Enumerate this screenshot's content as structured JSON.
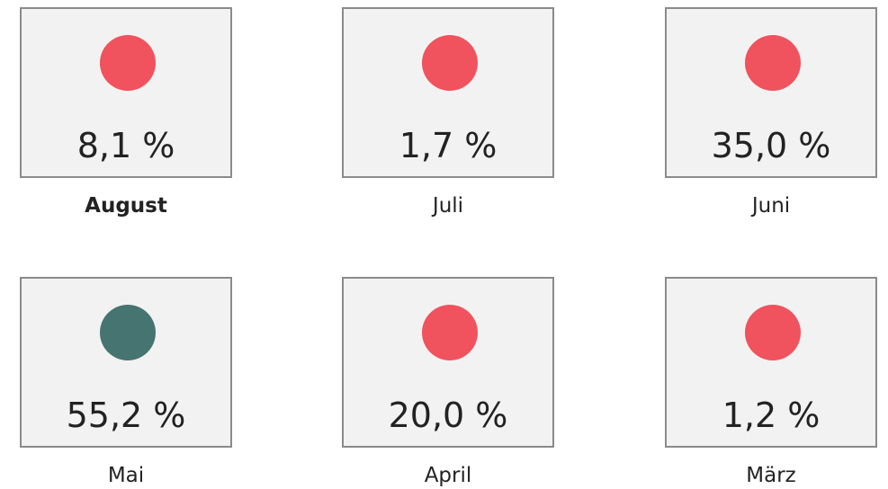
{
  "tiles": [
    {
      "value": "8,1 %",
      "label": "August",
      "color": "#f0525e",
      "selected": true
    },
    {
      "value": "1,7 %",
      "label": "Juli",
      "color": "#f0525e",
      "selected": false
    },
    {
      "value": "35,0 %",
      "label": "Juni",
      "color": "#f0525e",
      "selected": false
    },
    {
      "value": "55,2 %",
      "label": "Mai",
      "color": "#467470",
      "selected": false
    },
    {
      "value": "20,0 %",
      "label": "April",
      "color": "#f0525e",
      "selected": false
    },
    {
      "value": "1,2 %",
      "label": "März",
      "color": "#f0525e",
      "selected": false
    }
  ]
}
